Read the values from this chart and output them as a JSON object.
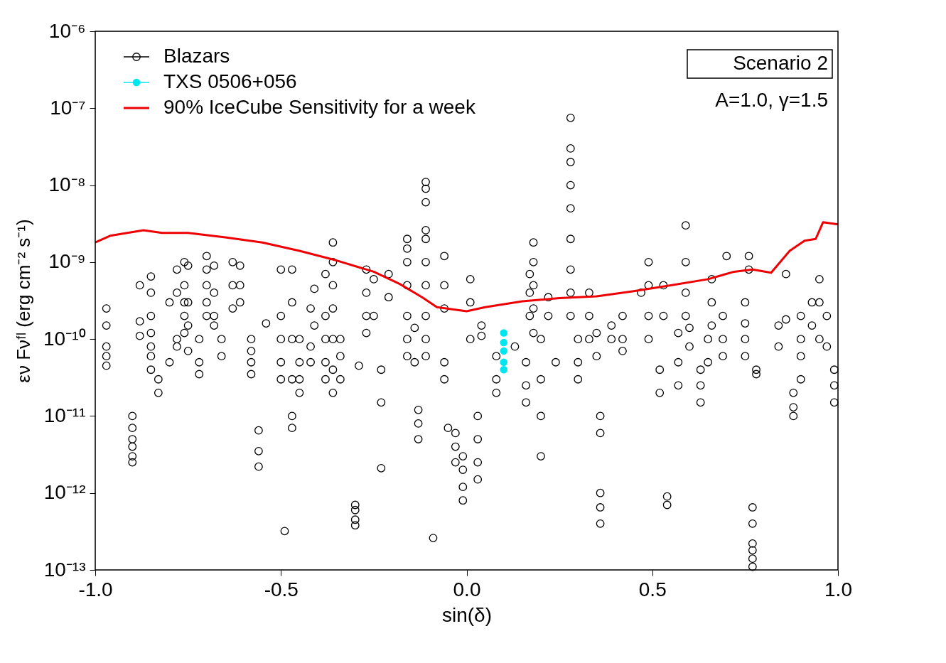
{
  "chart_data": {
    "type": "scatter",
    "xlabel": "sin(δ)",
    "ylabel": "εν Fνᶠˡ (erg cm⁻² s⁻¹)",
    "xlim": [
      -1.0,
      1.0
    ],
    "xticks": [
      {
        "value": -1.0,
        "label": "-1.0"
      },
      {
        "value": -0.5,
        "label": "-0.5"
      },
      {
        "value": 0.0,
        "label": "0.0"
      },
      {
        "value": 0.5,
        "label": "0.5"
      },
      {
        "value": 1.0,
        "label": "1.0"
      }
    ],
    "ylim": [
      1e-13,
      1e-06
    ],
    "log": true,
    "yticks": [
      {
        "value": 1e-13,
        "label": "10⁻¹³"
      },
      {
        "value": 1e-12,
        "label": "10⁻¹²"
      },
      {
        "value": 1e-11,
        "label": "10⁻¹¹"
      },
      {
        "value": 1e-10,
        "label": "10⁻¹⁰"
      },
      {
        "value": 1e-09,
        "label": "10⁻⁹"
      },
      {
        "value": 1e-08,
        "label": "10⁻⁸"
      },
      {
        "value": 1e-07,
        "label": "10⁻⁷"
      },
      {
        "value": 1e-06,
        "label": "10⁻⁶"
      }
    ],
    "grid": false,
    "legend": "top left",
    "annotations": [
      "Scenario 2",
      "A=1.0, γ=1.5"
    ],
    "series": [
      {
        "name": "Blazars",
        "marker": "circle",
        "color": "#000000",
        "x": [
          -0.97,
          -0.97,
          -0.97,
          -0.97,
          -0.97,
          -0.9,
          -0.9,
          -0.9,
          -0.9,
          -0.9,
          -0.9,
          -0.88,
          -0.88,
          -0.88,
          -0.85,
          -0.85,
          -0.85,
          -0.85,
          -0.85,
          -0.85,
          -0.85,
          -0.83,
          -0.83,
          -0.8,
          -0.8,
          -0.78,
          -0.78,
          -0.78,
          -0.78,
          -0.76,
          -0.76,
          -0.76,
          -0.76,
          -0.76,
          -0.75,
          -0.75,
          -0.75,
          -0.75,
          -0.72,
          -0.72,
          -0.72,
          -0.7,
          -0.7,
          -0.7,
          -0.7,
          -0.7,
          -0.68,
          -0.68,
          -0.68,
          -0.68,
          -0.66,
          -0.66,
          -0.63,
          -0.63,
          -0.63,
          -0.61,
          -0.61,
          -0.61,
          -0.58,
          -0.58,
          -0.58,
          -0.58,
          -0.56,
          -0.56,
          -0.56,
          -0.54,
          -0.5,
          -0.5,
          -0.5,
          -0.5,
          -0.5,
          -0.49,
          -0.47,
          -0.47,
          -0.47,
          -0.47,
          -0.47,
          -0.47,
          -0.45,
          -0.45,
          -0.45,
          -0.45,
          -0.42,
          -0.42,
          -0.42,
          -0.41,
          -0.41,
          -0.38,
          -0.38,
          -0.38,
          -0.38,
          -0.38,
          -0.36,
          -0.36,
          -0.36,
          -0.36,
          -0.36,
          -0.36,
          -0.36,
          -0.34,
          -0.34,
          -0.34,
          -0.3,
          -0.3,
          -0.3,
          -0.3,
          -0.29,
          -0.27,
          -0.27,
          -0.27,
          -0.27,
          -0.25,
          -0.25,
          -0.23,
          -0.23,
          -0.23,
          -0.21,
          -0.21,
          -0.16,
          -0.16,
          -0.16,
          -0.16,
          -0.16,
          -0.16,
          -0.16,
          -0.14,
          -0.14,
          -0.13,
          -0.13,
          -0.13,
          -0.11,
          -0.11,
          -0.11,
          -0.11,
          -0.11,
          -0.11,
          -0.11,
          -0.11,
          -0.11,
          -0.11,
          -0.09,
          -0.06,
          -0.06,
          -0.06,
          -0.06,
          -0.06,
          -0.05,
          -0.03,
          -0.03,
          -0.03,
          -0.01,
          -0.01,
          -0.01,
          -0.01,
          0.01,
          0.01,
          0.01,
          0.03,
          0.03,
          0.03,
          0.03,
          0.04,
          0.04,
          0.08,
          0.08,
          0.08,
          0.13,
          0.16,
          0.16,
          0.16,
          0.17,
          0.17,
          0.17,
          0.18,
          0.18,
          0.18,
          0.18,
          0.18,
          0.2,
          0.2,
          0.2,
          0.2,
          0.22,
          0.22,
          0.24,
          0.28,
          0.28,
          0.28,
          0.28,
          0.28,
          0.28,
          0.28,
          0.28,
          0.28,
          0.3,
          0.3,
          0.3,
          0.33,
          0.33,
          0.33,
          0.35,
          0.35,
          0.36,
          0.36,
          0.36,
          0.36,
          0.36,
          0.39,
          0.39,
          0.42,
          0.42,
          0.42,
          0.47,
          0.49,
          0.49,
          0.49,
          0.49,
          0.52,
          0.52,
          0.53,
          0.53,
          0.54,
          0.54,
          0.57,
          0.57,
          0.57,
          0.59,
          0.59,
          0.59,
          0.59,
          0.6,
          0.6,
          0.63,
          0.63,
          0.63,
          0.65,
          0.65,
          0.66,
          0.66,
          0.66,
          0.69,
          0.69,
          0.69,
          0.7,
          0.75,
          0.75,
          0.75,
          0.75,
          0.76,
          0.76,
          0.77,
          0.77,
          0.77,
          0.77,
          0.77,
          0.77,
          0.78,
          0.78,
          0.84,
          0.84,
          0.86,
          0.86,
          0.88,
          0.88,
          0.88,
          0.9,
          0.9,
          0.9,
          0.9,
          0.93,
          0.93,
          0.95,
          0.95,
          0.95,
          0.97,
          0.97,
          0.99,
          0.99,
          0.99
        ],
        "values": [
          2.5e-10,
          1.5e-10,
          8e-11,
          6e-11,
          4.5e-11,
          1e-11,
          7e-12,
          5e-12,
          4e-12,
          3e-12,
          2.5e-12,
          5e-10,
          1.7e-10,
          1.1e-10,
          6.5e-10,
          4e-10,
          2e-10,
          1.2e-10,
          8e-11,
          6e-11,
          4e-11,
          3e-11,
          2e-11,
          3e-10,
          5e-11,
          8e-10,
          4e-10,
          1e-10,
          8e-11,
          1e-09,
          5e-10,
          3e-10,
          2e-10,
          1.2e-10,
          9e-10,
          3e-10,
          1.5e-10,
          7e-11,
          1e-10,
          5e-11,
          3.5e-11,
          1.2e-09,
          8e-10,
          5e-10,
          3e-10,
          2e-10,
          9e-10,
          4e-10,
          2e-10,
          1.5e-10,
          1e-10,
          6e-11,
          1e-09,
          5e-10,
          2.5e-10,
          9e-10,
          5e-10,
          3e-10,
          1e-10,
          7e-11,
          5e-11,
          3.5e-11,
          6.5e-12,
          3.5e-12,
          2.2e-12,
          1.6e-10,
          8e-10,
          2e-10,
          1e-10,
          5e-11,
          3e-11,
          3.2e-13,
          8e-10,
          3e-10,
          1e-10,
          3e-11,
          1e-11,
          7e-12,
          1e-10,
          5e-11,
          3e-11,
          2e-11,
          2.5e-10,
          8e-11,
          5e-11,
          4.5e-10,
          1.5e-10,
          7e-10,
          2e-10,
          1e-10,
          5e-11,
          3e-11,
          1.8e-09,
          1e-09,
          5e-10,
          2.5e-10,
          1e-10,
          4e-11,
          2e-11,
          1e-10,
          6e-11,
          3e-11,
          7e-13,
          6e-13,
          4.5e-13,
          3.8e-13,
          4.5e-11,
          8e-10,
          4e-10,
          2e-10,
          1.2e-10,
          6e-10,
          2e-10,
          4e-11,
          1.5e-11,
          2.1e-12,
          7e-10,
          3.5e-10,
          2e-09,
          1.5e-09,
          1e-09,
          5e-10,
          2e-10,
          1e-10,
          6e-11,
          1.4e-10,
          5e-11,
          1.2e-11,
          8e-12,
          5e-12,
          1.1e-08,
          9e-09,
          6e-09,
          2.6e-09,
          2e-09,
          1e-09,
          5e-10,
          2e-10,
          1e-10,
          6e-11,
          2.6e-13,
          1.2e-09,
          5e-10,
          2.5e-10,
          5e-11,
          3e-11,
          7e-12,
          6e-12,
          4e-12,
          2.5e-12,
          3e-12,
          2e-12,
          1.2e-12,
          8e-13,
          6e-10,
          3e-10,
          1e-10,
          1e-11,
          5e-12,
          2.5e-12,
          1.5e-12,
          1.5e-10,
          1.1e-10,
          6e-11,
          3e-11,
          2e-11,
          8e-11,
          5e-11,
          2.5e-11,
          1.5e-11,
          7e-10,
          4e-10,
          2e-10,
          1.8e-09,
          1e-09,
          5e-10,
          2.5e-10,
          1.2e-10,
          1e-10,
          3e-11,
          1e-11,
          3e-12,
          3.5e-10,
          2e-10,
          5e-11,
          7.5e-08,
          3e-08,
          2e-08,
          1e-08,
          5e-09,
          2e-09,
          8e-10,
          4e-10,
          2e-10,
          1e-10,
          5e-11,
          3e-11,
          4e-10,
          2e-10,
          1e-10,
          1.2e-10,
          6e-11,
          1e-11,
          6e-12,
          1e-12,
          6.5e-13,
          4e-13,
          1.5e-10,
          1e-10,
          2e-10,
          1e-10,
          7e-11,
          4e-10,
          1e-09,
          5e-10,
          2e-10,
          1e-10,
          4e-11,
          2e-11,
          5e-10,
          2e-10,
          9e-13,
          7e-13,
          1.2e-10,
          5e-11,
          2.5e-11,
          3e-09,
          1e-09,
          4e-10,
          2e-10,
          1.4e-10,
          8e-11,
          4e-11,
          2.5e-11,
          1.5e-11,
          1e-10,
          5e-11,
          6e-10,
          3e-10,
          1.5e-10,
          2e-10,
          1e-10,
          6e-11,
          1.2e-09,
          3e-10,
          1.6e-10,
          1e-10,
          6e-11,
          1.2e-09,
          8e-10,
          6.5e-13,
          4e-13,
          2.2e-13,
          1.8e-13,
          1.4e-13,
          1.1e-13,
          4e-11,
          3.5e-11,
          1.5e-10,
          8e-11,
          1.8e-10,
          7e-10,
          2e-11,
          1.3e-11,
          1e-11,
          2e-10,
          1e-10,
          6e-11,
          3e-11,
          3e-10,
          1.5e-10,
          6e-10,
          3e-10,
          1e-10,
          2e-10,
          8e-11,
          4e-11,
          2.5e-11,
          1.5e-11
        ]
      },
      {
        "name": "TXS 0506+056",
        "marker": "circle",
        "color": "#00e5ee",
        "x": [
          0.1,
          0.1,
          0.1,
          0.1,
          0.1
        ],
        "values": [
          1.2e-10,
          9e-11,
          7e-11,
          5e-11,
          4e-11
        ]
      },
      {
        "name": "90% IceCube Sensitivity for a week",
        "type": "line",
        "marker": "none",
        "line_style": "solid",
        "color": "#ee0000",
        "x": [
          -1.0,
          -0.96,
          -0.87,
          -0.82,
          -0.75,
          -0.65,
          -0.55,
          -0.45,
          -0.35,
          -0.25,
          -0.18,
          -0.12,
          -0.08,
          0.0,
          0.05,
          0.15,
          0.25,
          0.35,
          0.45,
          0.55,
          0.65,
          0.72,
          0.77,
          0.82,
          0.87,
          0.91,
          0.94,
          0.96,
          1.0
        ],
        "values": [
          1.8e-09,
          2.2e-09,
          2.6e-09,
          2.4e-09,
          2.4e-09,
          2.1e-09,
          1.8e-09,
          1.4e-09,
          1.05e-09,
          7.5e-10,
          5.2e-10,
          3.5e-10,
          2.6e-10,
          2.3e-10,
          2.6e-10,
          3.1e-10,
          3.4e-10,
          3.6e-10,
          4.2e-10,
          5e-10,
          6e-10,
          7.5e-10,
          8e-10,
          7.3e-10,
          1.4e-09,
          1.9e-09,
          2e-09,
          3.3e-09,
          3.1e-09
        ]
      }
    ]
  }
}
